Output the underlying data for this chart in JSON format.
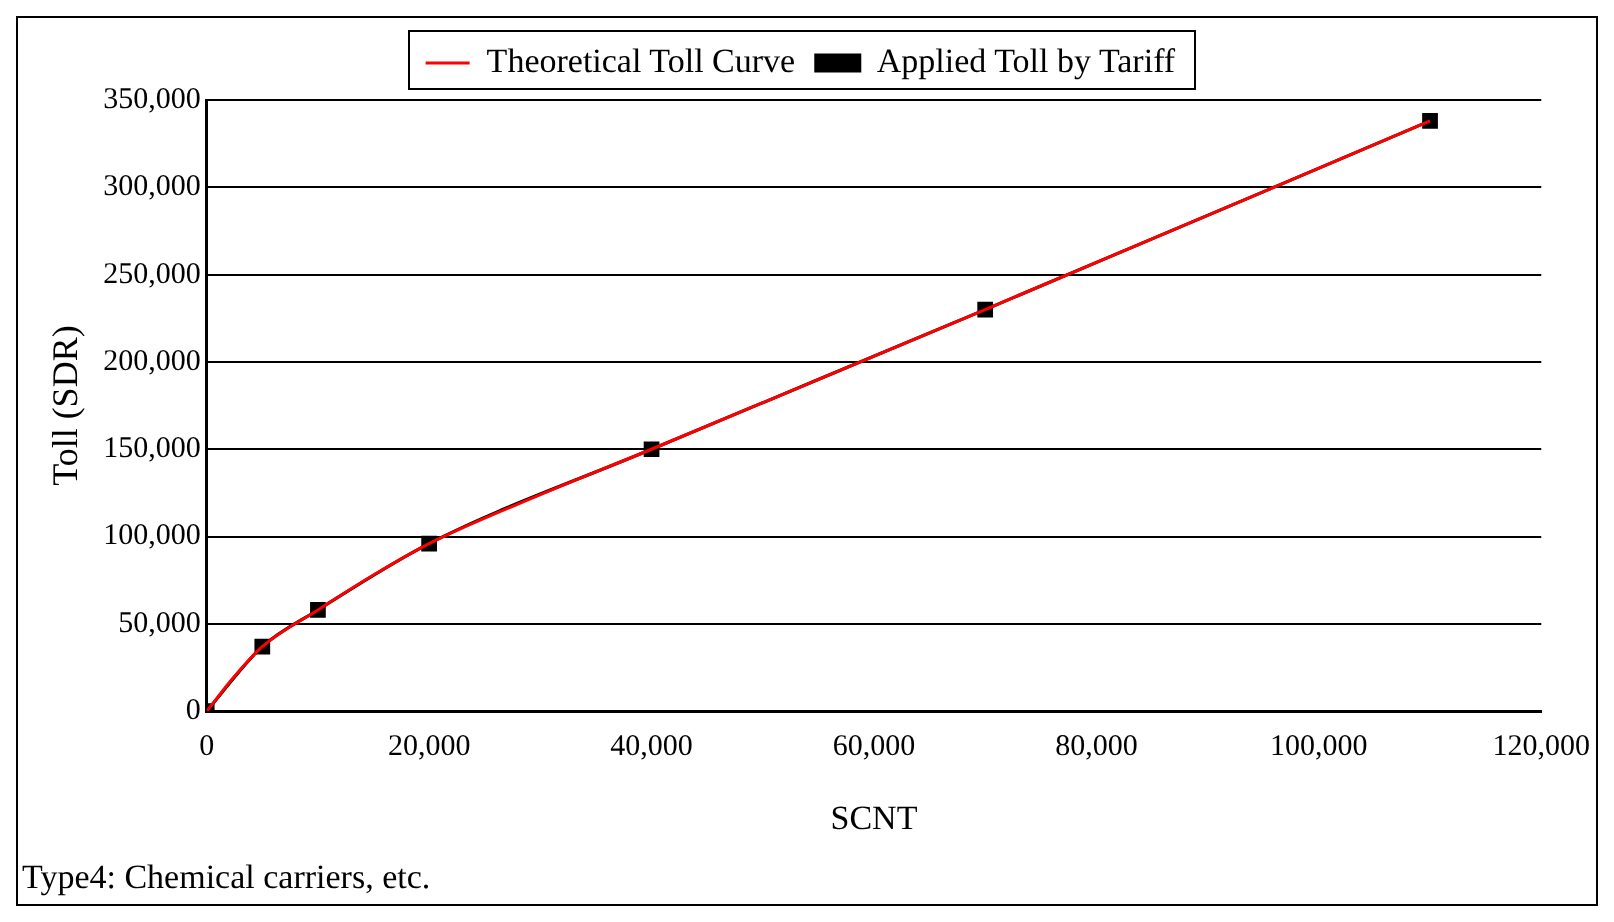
{
  "chart_data": {
    "type": "line",
    "xlabel": "SCNT",
    "ylabel": "Toll (SDR)",
    "series": [
      {
        "name": "Theoretical Toll Curve",
        "color": "#ff0000",
        "marker": "none",
        "x": [
          0,
          2500,
          5000,
          10000,
          15000,
          20000,
          30000,
          40000,
          70000,
          110000
        ],
        "values": [
          0,
          20000,
          37000,
          58000,
          78000,
          96000,
          124000,
          150000,
          230000,
          338000
        ]
      },
      {
        "name": "Applied Toll by Tariff",
        "color": "#000000",
        "marker": "square",
        "x": [
          0,
          5000,
          10000,
          20000,
          40000,
          70000,
          110000
        ],
        "values": [
          0,
          37000,
          58000,
          96000,
          150000,
          230000,
          338000
        ]
      }
    ],
    "xlim": [
      0,
      120000
    ],
    "xticks": [
      0,
      {
        "value": 20000,
        "label": "20,000"
      },
      {
        "value": 40000,
        "label": "40,000"
      },
      {
        "value": 60000,
        "label": "60,000"
      },
      {
        "value": 80000,
        "label": "80,000"
      },
      {
        "value": 100000,
        "label": "100,000"
      },
      {
        "value": 120000,
        "label": "120,000"
      }
    ],
    "ylim": [
      0,
      350000
    ],
    "yticks": [
      0,
      {
        "value": 50000,
        "label": "50,000"
      },
      {
        "value": 100000,
        "label": "100,000"
      },
      {
        "value": 150000,
        "label": "150,000"
      },
      {
        "value": 200000,
        "label": "200,000"
      },
      {
        "value": 250000,
        "label": "250,000"
      },
      {
        "value": 300000,
        "label": "300,000"
      },
      {
        "value": 350000,
        "label": "350,000"
      }
    ],
    "grid": "y",
    "legend": "top",
    "line_style": "solid",
    "annotations": [
      "Type4: Chemical carriers, etc."
    ]
  }
}
